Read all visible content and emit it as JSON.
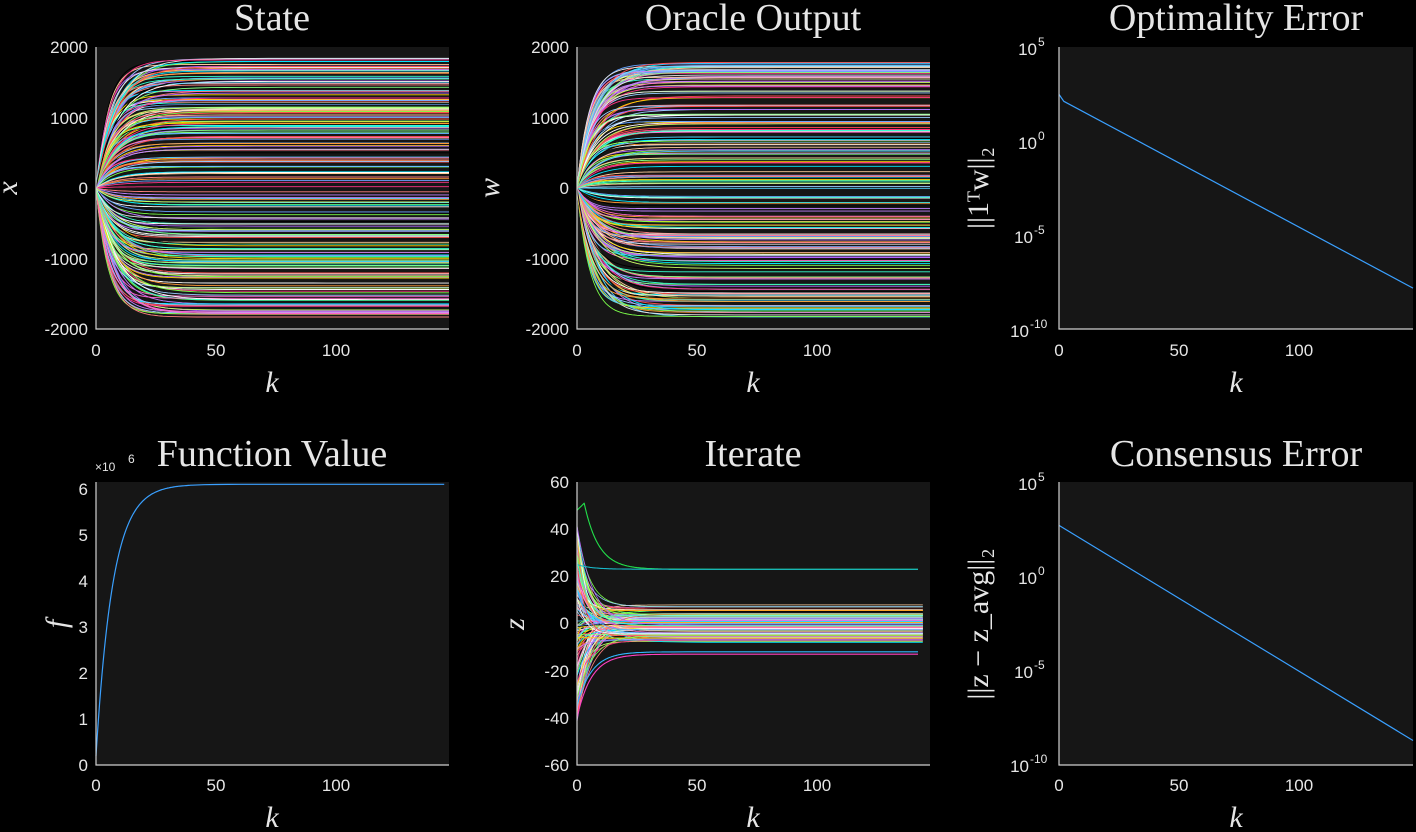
{
  "chart_data": [
    {
      "id": "state",
      "type": "line",
      "title": "State",
      "xlabel": "k",
      "ylabel": "x",
      "xlim": [
        0,
        147
      ],
      "ylim": [
        -2000,
        2000
      ],
      "xticks": [
        "0",
        "50",
        "100"
      ],
      "yticks": [
        "2000",
        "1000",
        "0",
        "-1000",
        "-2000"
      ],
      "series_description": "about 200 trajectories starting near 0 and converging to constant values spread over roughly -1850 to 1850",
      "steady_state_range": [
        -1850,
        1850
      ],
      "series_count": 200,
      "time_constant": 7
    },
    {
      "id": "oracle",
      "type": "line",
      "title": "Oracle Output",
      "xlabel": "k",
      "ylabel": "w",
      "xlim": [
        0,
        147
      ],
      "ylim": [
        -2000,
        2000
      ],
      "xticks": [
        "0",
        "50",
        "100"
      ],
      "yticks": [
        "2000",
        "1000",
        "0",
        "-1000",
        "-2000"
      ],
      "steady_state_range": [
        -1850,
        1850
      ],
      "series_count": 200,
      "time_constant": 7
    },
    {
      "id": "optimality",
      "type": "line",
      "title": "Optimality Error",
      "xlabel": "k",
      "ylabel": "||1ᵀw||₂",
      "yscale": "log",
      "xlim": [
        0,
        147
      ],
      "ylim": [
        1e-10,
        100000.0
      ],
      "xticks": [
        "0",
        "50",
        "100"
      ],
      "yticks": [
        {
          "base": "10",
          "exp": "5"
        },
        {
          "base": "10",
          "exp": "0"
        },
        {
          "base": "10",
          "exp": "-5"
        },
        {
          "base": "10",
          "exp": "-10"
        }
      ],
      "x": [
        0,
        2,
        147
      ],
      "y": [
        300,
        130,
        1.5e-08
      ]
    },
    {
      "id": "function",
      "type": "line",
      "title": "Function Value",
      "xlabel": "k",
      "ylabel": "f",
      "y_multiplier": {
        "base": "×10",
        "exp": "6"
      },
      "xlim": [
        0,
        147
      ],
      "ylim": [
        0,
        6.2
      ],
      "xticks": [
        "0",
        "50",
        "100"
      ],
      "yticks": [
        "6",
        "5",
        "4",
        "3",
        "2",
        "1",
        "0"
      ],
      "start": 0.2,
      "final": 6.15,
      "time_constant": 7
    },
    {
      "id": "iterate",
      "type": "line",
      "title": "Iterate",
      "xlabel": "k",
      "ylabel": "z",
      "xlim": [
        0,
        147
      ],
      "ylim": [
        -60,
        60
      ],
      "xticks": [
        "0",
        "50",
        "100"
      ],
      "yticks": [
        "60",
        "40",
        "20",
        "0",
        "-20",
        "-40",
        "-60"
      ],
      "series_count": 150,
      "highlight_series": [
        {
          "color": "#22e04a",
          "start": 48,
          "peak": 51,
          "final": 23
        },
        {
          "color": "#18b8c8",
          "start": 25,
          "final": 23
        },
        {
          "color": "#ff40c0",
          "start": -40,
          "final": -13
        },
        {
          "color": "#30b8ff",
          "start": -35,
          "final": -12
        }
      ]
    },
    {
      "id": "consensus",
      "type": "line",
      "title": "Consensus Error",
      "xlabel": "k",
      "ylabel": "||z − z_avg||₂",
      "yscale": "log",
      "xlim": [
        0,
        147
      ],
      "ylim": [
        1e-10,
        100000.0
      ],
      "xticks": [
        "0",
        "50",
        "100"
      ],
      "yticks": [
        {
          "base": "10",
          "exp": "5"
        },
        {
          "base": "10",
          "exp": "0"
        },
        {
          "base": "10",
          "exp": "-5"
        },
        {
          "base": "10",
          "exp": "-10"
        }
      ],
      "x": [
        0,
        147
      ],
      "y": [
        500,
        2e-09
      ]
    }
  ],
  "colors": {
    "background": "#000000",
    "plot_background": "#161616",
    "axis": "#d0d0d0",
    "text": "#e6e6e6",
    "single_series": "#3aa0ff",
    "palette": [
      "#00e5ff",
      "#ff4d4d",
      "#ffd400",
      "#7cff4a",
      "#ff66cc",
      "#66a3ff",
      "#ffffff",
      "#ff9933",
      "#b366ff",
      "#33ffcc",
      "#ff3385",
      "#99ccff",
      "#ccff66",
      "#ff8080",
      "#4dd2ff",
      "#e6e6e6",
      "#ffcc99",
      "#80ff80",
      "#c080ff",
      "#000000"
    ]
  }
}
